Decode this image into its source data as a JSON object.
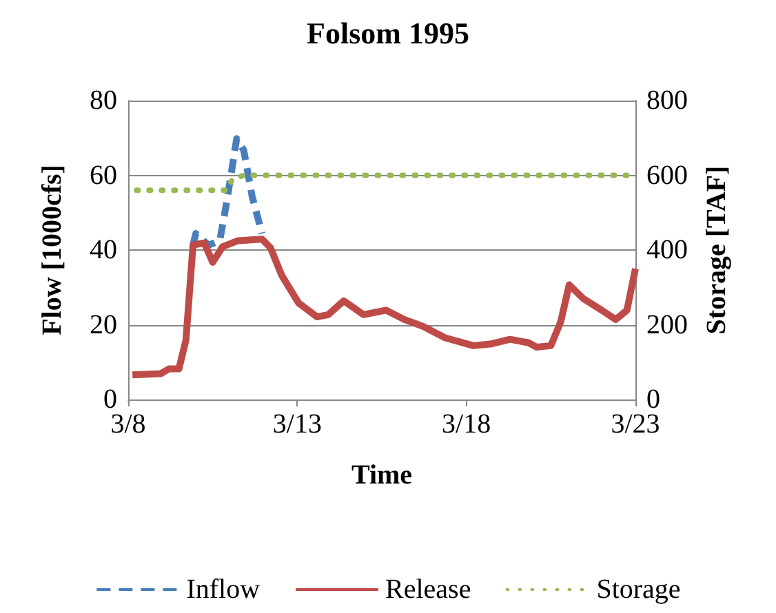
{
  "chart_data": {
    "type": "line",
    "title": "Folsom 1995",
    "xlabel": "Time",
    "ylabel": "Flow [1000cfs]",
    "y2label": "Storage [TAF]",
    "xlim": [
      "1995-03-08",
      "1995-03-23"
    ],
    "xticks": [
      {
        "value": "1995-03-08",
        "label": "3/8"
      },
      {
        "value": "1995-03-13",
        "label": "3/13"
      },
      {
        "value": "1995-03-18",
        "label": "3/18"
      },
      {
        "value": "1995-03-23",
        "label": "3/23"
      }
    ],
    "ylim": [
      0,
      80
    ],
    "yticks": [
      0,
      20,
      40,
      60,
      80
    ],
    "y2lim": [
      0,
      800
    ],
    "y2ticks": [
      0,
      200,
      400,
      600,
      800
    ],
    "grid": "y",
    "legend": "bottom",
    "marker": "none",
    "series": [
      {
        "name": "Inflow",
        "color": "#4a7ebb",
        "line_style": "dashed",
        "x": [
          "1995-03-09T22:00",
          "1995-03-10T00:00",
          "1995-03-10T09:00",
          "1995-03-10T17:00",
          "1995-03-10T22:00",
          "1995-03-11T05:00",
          "1995-03-11T10:00",
          "1995-03-11T16:00",
          "1995-03-11T23:00"
        ],
        "values": [
          41.3,
          44.4,
          41.3,
          42.5,
          53,
          69.8,
          66.7,
          54.3,
          44.4
        ]
      },
      {
        "name": "Release",
        "color": "#be4b48",
        "line_style": "solid",
        "x": [
          "1995-03-08T03:00",
          "1995-03-08T23:00",
          "1995-03-09T05:00",
          "1995-03-09T12:00",
          "1995-03-09T17:00",
          "1995-03-09T22:00",
          "1995-03-10T06:00",
          "1995-03-10T12:00",
          "1995-03-10T19:00",
          "1995-03-11T06:00",
          "1995-03-11T23:00",
          "1995-03-12T05:00",
          "1995-03-12T13:00",
          "1995-03-13T01:00",
          "1995-03-13T14:00",
          "1995-03-13T22:00",
          "1995-03-14T09:00",
          "1995-03-14T23:00",
          "1995-03-15T15:00",
          "1995-03-16T04:00",
          "1995-03-16T17:00",
          "1995-03-17T09:00",
          "1995-03-18T05:00",
          "1995-03-18T18:00",
          "1995-03-19T07:00",
          "1995-03-19T20:00",
          "1995-03-20T02:00",
          "1995-03-20T12:00",
          "1995-03-20T19:00",
          "1995-03-21T01:00",
          "1995-03-21T11:00",
          "1995-03-22T00:00",
          "1995-03-22T10:00",
          "1995-03-22T18:00",
          "1995-03-23T00:00"
        ],
        "values": [
          6.6,
          6.9,
          8.2,
          8.2,
          15.9,
          41.3,
          41.9,
          36.7,
          40.9,
          42.5,
          42.9,
          40.6,
          33.2,
          25.8,
          22.1,
          22.7,
          26.4,
          22.7,
          23.9,
          21.4,
          19.6,
          16.5,
          14.4,
          14.9,
          16.1,
          15.2,
          14,
          14.4,
          20.8,
          30.7,
          27,
          23.9,
          21.4,
          23.9,
          35
        ]
      },
      {
        "name": "Storage",
        "color": "#98b954",
        "line_style": "dotted",
        "axis": "y2",
        "x": [
          "1995-03-08T06:00",
          "1995-03-10T22:00",
          "1995-03-11T02:00",
          "1995-03-11T10:00",
          "1995-03-23T00:00"
        ],
        "values": [
          560,
          560,
          590,
          600,
          600
        ]
      }
    ]
  }
}
